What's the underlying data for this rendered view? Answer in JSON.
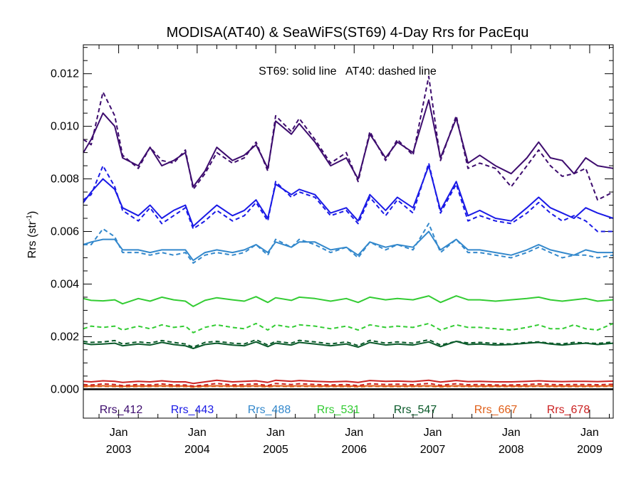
{
  "chart_data": {
    "type": "line",
    "title": "MODISA(AT40) & SeaWiFS(ST69) 4-Day Rrs for PacEqu",
    "annotation": "ST69: solid line   AT40: dashed line",
    "ylabel_main": "Rrs (str",
    "ylabel_sup": "-1",
    "ylabel_end": ")",
    "xlim": [
      2002.55,
      2009.3
    ],
    "ylim": [
      -0.0011,
      0.0131
    ],
    "y_ticks": [
      "0.000",
      "0.002",
      "0.004",
      "0.006",
      "0.008",
      "0.010",
      "0.012"
    ],
    "x_ticks": [
      {
        "month": "Jan",
        "year": "2003"
      },
      {
        "month": "Jan",
        "year": "2004"
      },
      {
        "month": "Jan",
        "year": "2005"
      },
      {
        "month": "Jan",
        "year": "2006"
      },
      {
        "month": "Jan",
        "year": "2007"
      },
      {
        "month": "Jan",
        "year": "2008"
      },
      {
        "month": "Jan",
        "year": "2009"
      }
    ],
    "zero_line": 0,
    "series": [
      {
        "name": "Rrs_412",
        "color": "#3d0c6e",
        "x": [
          2002.55,
          2002.65,
          2002.8,
          2002.95,
          2003.05,
          2003.25,
          2003.4,
          2003.55,
          2003.7,
          2003.85,
          2003.95,
          2004.1,
          2004.25,
          2004.45,
          2004.6,
          2004.75,
          2004.9,
          2005.0,
          2005.2,
          2005.3,
          2005.5,
          2005.7,
          2005.9,
          2006.05,
          2006.2,
          2006.4,
          2006.55,
          2006.75,
          2006.95,
          2007.1,
          2007.3,
          2007.45,
          2007.6,
          2007.8,
          2008.0,
          2008.2,
          2008.35,
          2008.5,
          2008.65,
          2008.8,
          2008.95,
          2009.1,
          2009.3
        ],
        "solid": [
          0.009,
          0.0095,
          0.0105,
          0.01,
          0.0088,
          0.0085,
          0.0092,
          0.0085,
          0.0087,
          0.009,
          0.0077,
          0.0083,
          0.0092,
          0.0087,
          0.0089,
          0.0093,
          0.0084,
          0.0102,
          0.0097,
          0.0101,
          0.0094,
          0.0085,
          0.0088,
          0.008,
          0.0097,
          0.0088,
          0.0094,
          0.009,
          0.011,
          0.0088,
          0.0103,
          0.0086,
          0.0089,
          0.0085,
          0.0082,
          0.0088,
          0.0094,
          0.0088,
          0.0087,
          0.0082,
          0.0088,
          0.0085,
          0.0084
        ],
        "dashed": [
          0.0095,
          0.0093,
          0.0113,
          0.0104,
          0.0089,
          0.0084,
          0.0092,
          0.0087,
          0.0086,
          0.0091,
          0.0076,
          0.0082,
          0.009,
          0.0086,
          0.0088,
          0.0094,
          0.0083,
          0.0104,
          0.0098,
          0.0103,
          0.0095,
          0.0086,
          0.009,
          0.0079,
          0.0098,
          0.0087,
          0.0095,
          0.0089,
          0.0119,
          0.0087,
          0.0104,
          0.0084,
          0.0086,
          0.0084,
          0.0077,
          0.0085,
          0.0091,
          0.0085,
          0.0081,
          0.0082,
          0.0084,
          0.0072,
          0.0075
        ]
      },
      {
        "name": "Rrs_443",
        "color": "#1a1ae6",
        "x": [
          2002.55,
          2002.65,
          2002.8,
          2002.95,
          2003.05,
          2003.25,
          2003.4,
          2003.55,
          2003.7,
          2003.85,
          2003.95,
          2004.1,
          2004.25,
          2004.45,
          2004.6,
          2004.75,
          2004.9,
          2005.0,
          2005.2,
          2005.3,
          2005.5,
          2005.7,
          2005.9,
          2006.05,
          2006.2,
          2006.4,
          2006.55,
          2006.75,
          2006.95,
          2007.1,
          2007.3,
          2007.45,
          2007.6,
          2007.8,
          2008.0,
          2008.2,
          2008.35,
          2008.5,
          2008.65,
          2008.8,
          2008.95,
          2009.1,
          2009.3
        ],
        "solid": [
          0.0071,
          0.0075,
          0.008,
          0.0076,
          0.0069,
          0.0066,
          0.007,
          0.0065,
          0.0068,
          0.007,
          0.0062,
          0.0066,
          0.007,
          0.0066,
          0.0068,
          0.0072,
          0.0065,
          0.0078,
          0.0074,
          0.0076,
          0.0074,
          0.0067,
          0.0069,
          0.0064,
          0.0074,
          0.0068,
          0.0073,
          0.0069,
          0.0085,
          0.0068,
          0.0079,
          0.0066,
          0.0068,
          0.0065,
          0.0064,
          0.0069,
          0.0073,
          0.0069,
          0.0067,
          0.0065,
          0.0069,
          0.0067,
          0.0065
        ],
        "dashed": [
          0.0072,
          0.0074,
          0.0085,
          0.0077,
          0.0068,
          0.0064,
          0.0069,
          0.0063,
          0.0066,
          0.0069,
          0.0061,
          0.0064,
          0.0068,
          0.0064,
          0.0066,
          0.0071,
          0.0064,
          0.0079,
          0.0073,
          0.0075,
          0.0073,
          0.0066,
          0.0068,
          0.0063,
          0.0073,
          0.0066,
          0.0072,
          0.0067,
          0.0086,
          0.0067,
          0.0078,
          0.0064,
          0.0066,
          0.0064,
          0.0063,
          0.0067,
          0.0071,
          0.0067,
          0.0064,
          0.0066,
          0.0064,
          0.006,
          0.006
        ]
      },
      {
        "name": "Rrs_488",
        "color": "#3388cc",
        "x": [
          2002.55,
          2002.65,
          2002.8,
          2002.95,
          2003.05,
          2003.25,
          2003.4,
          2003.55,
          2003.7,
          2003.85,
          2003.95,
          2004.1,
          2004.25,
          2004.45,
          2004.6,
          2004.75,
          2004.9,
          2005.0,
          2005.2,
          2005.3,
          2005.5,
          2005.7,
          2005.9,
          2006.05,
          2006.2,
          2006.4,
          2006.55,
          2006.75,
          2006.95,
          2007.1,
          2007.3,
          2007.45,
          2007.6,
          2007.8,
          2008.0,
          2008.2,
          2008.35,
          2008.5,
          2008.65,
          2008.8,
          2008.95,
          2009.1,
          2009.3
        ],
        "solid": [
          0.0055,
          0.0056,
          0.0057,
          0.0057,
          0.0053,
          0.0053,
          0.0052,
          0.0053,
          0.0053,
          0.0053,
          0.0049,
          0.0052,
          0.0053,
          0.0052,
          0.0053,
          0.0055,
          0.0052,
          0.0056,
          0.0054,
          0.0056,
          0.0056,
          0.0053,
          0.0054,
          0.0051,
          0.0056,
          0.0054,
          0.0055,
          0.0054,
          0.006,
          0.0053,
          0.0057,
          0.0053,
          0.0053,
          0.0052,
          0.0051,
          0.0053,
          0.0055,
          0.0053,
          0.0052,
          0.0051,
          0.0053,
          0.0052,
          0.0052
        ],
        "dashed": [
          0.0055,
          0.0055,
          0.0061,
          0.0058,
          0.0052,
          0.0052,
          0.0051,
          0.0052,
          0.0051,
          0.0052,
          0.0048,
          0.0051,
          0.0052,
          0.0051,
          0.0052,
          0.0055,
          0.0051,
          0.0057,
          0.0054,
          0.0057,
          0.0055,
          0.0052,
          0.0054,
          0.005,
          0.0056,
          0.0053,
          0.0055,
          0.0053,
          0.0063,
          0.0052,
          0.0057,
          0.0052,
          0.0052,
          0.0051,
          0.005,
          0.0052,
          0.0054,
          0.0052,
          0.005,
          0.0051,
          0.0051,
          0.005,
          0.0051
        ]
      },
      {
        "name": "Rrs_531",
        "color": "#33cc33",
        "x": [
          2002.55,
          2002.65,
          2002.8,
          2002.95,
          2003.05,
          2003.25,
          2003.4,
          2003.55,
          2003.7,
          2003.85,
          2003.95,
          2004.1,
          2004.25,
          2004.45,
          2004.6,
          2004.75,
          2004.9,
          2005.0,
          2005.2,
          2005.3,
          2005.5,
          2005.7,
          2005.9,
          2006.05,
          2006.2,
          2006.4,
          2006.55,
          2006.75,
          2006.95,
          2007.1,
          2007.3,
          2007.45,
          2007.6,
          2007.8,
          2008.0,
          2008.2,
          2008.35,
          2008.5,
          2008.65,
          2008.8,
          2008.95,
          2009.1,
          2009.3
        ],
        "solid": [
          0.00345,
          0.00338,
          0.00336,
          0.0034,
          0.00325,
          0.00345,
          0.00335,
          0.0035,
          0.0034,
          0.00335,
          0.00315,
          0.00338,
          0.00348,
          0.0034,
          0.00335,
          0.00352,
          0.0033,
          0.00348,
          0.00338,
          0.0035,
          0.00345,
          0.00335,
          0.00345,
          0.0033,
          0.0035,
          0.0034,
          0.00345,
          0.0034,
          0.00355,
          0.0033,
          0.00355,
          0.0034,
          0.0034,
          0.00335,
          0.0034,
          0.00345,
          0.0035,
          0.0034,
          0.00335,
          0.0034,
          0.00345,
          0.00335,
          0.0034
        ],
        "dashed": [
          0.0023,
          0.0024,
          0.00235,
          0.0024,
          0.00225,
          0.0024,
          0.0023,
          0.00245,
          0.00235,
          0.0024,
          0.00215,
          0.00235,
          0.00245,
          0.00235,
          0.0023,
          0.0025,
          0.00225,
          0.00245,
          0.00235,
          0.00245,
          0.0024,
          0.0023,
          0.0024,
          0.00225,
          0.00245,
          0.00235,
          0.0024,
          0.00235,
          0.0025,
          0.00225,
          0.00245,
          0.00235,
          0.00235,
          0.0023,
          0.00225,
          0.00235,
          0.00245,
          0.0023,
          0.0023,
          0.00245,
          0.0023,
          0.00225,
          0.0025
        ]
      },
      {
        "name": "Rrs_547",
        "color": "#0a5a2a",
        "x": [
          2002.55,
          2002.65,
          2002.8,
          2002.95,
          2003.05,
          2003.25,
          2003.4,
          2003.55,
          2003.7,
          2003.85,
          2003.95,
          2004.1,
          2004.25,
          2004.45,
          2004.6,
          2004.75,
          2004.9,
          2005.0,
          2005.2,
          2005.3,
          2005.5,
          2005.7,
          2005.9,
          2006.05,
          2006.2,
          2006.4,
          2006.55,
          2006.75,
          2006.95,
          2007.1,
          2007.3,
          2007.45,
          2007.6,
          2007.8,
          2008.0,
          2008.2,
          2008.35,
          2008.5,
          2008.65,
          2008.8,
          2008.95,
          2009.1,
          2009.3
        ],
        "solid": [
          0.00175,
          0.0017,
          0.00172,
          0.00175,
          0.00165,
          0.00172,
          0.00168,
          0.00178,
          0.0017,
          0.00165,
          0.00155,
          0.0017,
          0.00175,
          0.00168,
          0.00165,
          0.0018,
          0.00162,
          0.00175,
          0.00168,
          0.00178,
          0.00172,
          0.00165,
          0.00172,
          0.0016,
          0.00178,
          0.00168,
          0.00172,
          0.00168,
          0.0018,
          0.00162,
          0.00182,
          0.0017,
          0.00172,
          0.00168,
          0.0017,
          0.00175,
          0.00178,
          0.00172,
          0.00168,
          0.00172,
          0.00175,
          0.0017,
          0.00175
        ],
        "dashed": [
          0.00182,
          0.00178,
          0.0018,
          0.00185,
          0.00172,
          0.0018,
          0.00176,
          0.00185,
          0.00178,
          0.00172,
          0.0016,
          0.00178,
          0.00182,
          0.00175,
          0.00172,
          0.00188,
          0.00168,
          0.00182,
          0.00175,
          0.00186,
          0.0018,
          0.00172,
          0.0018,
          0.00166,
          0.00186,
          0.00175,
          0.0018,
          0.00175,
          0.00188,
          0.00168,
          0.00182,
          0.00176,
          0.00178,
          0.00174,
          0.00172,
          0.00178,
          0.0018,
          0.00175,
          0.00172,
          0.00178,
          0.00176,
          0.00174,
          0.0018
        ]
      },
      {
        "name": "Rrs_667",
        "color": "#e0601a",
        "x": [
          2002.55,
          2002.65,
          2002.8,
          2002.95,
          2003.05,
          2003.25,
          2003.4,
          2003.55,
          2003.7,
          2003.85,
          2003.95,
          2004.1,
          2004.25,
          2004.45,
          2004.6,
          2004.75,
          2004.9,
          2005.0,
          2005.2,
          2005.3,
          2005.5,
          2005.7,
          2005.9,
          2006.05,
          2006.2,
          2006.4,
          2006.55,
          2006.75,
          2006.95,
          2007.1,
          2007.3,
          2007.45,
          2007.6,
          2007.8,
          2008.0,
          2008.2,
          2008.35,
          2008.5,
          2008.65,
          2008.8,
          2008.95,
          2009.1,
          2009.3
        ],
        "solid": [
          0.00012,
          0.00012,
          0.00013,
          0.00012,
          0.00011,
          0.00012,
          0.00012,
          0.00013,
          0.00012,
          0.00012,
          0.0001,
          0.00012,
          0.00013,
          0.00012,
          0.00012,
          0.00013,
          0.00011,
          0.00013,
          0.00012,
          0.00013,
          0.00012,
          0.00012,
          0.00012,
          0.00011,
          0.00013,
          0.00012,
          0.00012,
          0.00012,
          0.00013,
          0.00011,
          0.00013,
          0.00012,
          0.00012,
          0.00012,
          0.00012,
          0.00012,
          0.00013,
          0.00012,
          0.00012,
          0.00012,
          0.00012,
          0.00012,
          0.00013
        ],
        "dashed": [
          0.0001,
          0.0001,
          0.00011,
          0.0001,
          9e-05,
          0.0001,
          0.0001,
          0.00011,
          0.0001,
          0.0001,
          8e-05,
          0.0001,
          0.00011,
          0.0001,
          0.0001,
          0.00011,
          9e-05,
          0.00011,
          0.0001,
          0.00011,
          0.0001,
          0.0001,
          0.0001,
          9e-05,
          0.00011,
          0.0001,
          0.0001,
          0.0001,
          0.00011,
          9e-05,
          0.00011,
          0.0001,
          0.0001,
          0.0001,
          0.0001,
          0.0001,
          0.00011,
          0.0001,
          0.0001,
          0.0001,
          0.0001,
          0.0001,
          0.00011
        ]
      },
      {
        "name": "Rrs_678",
        "color": "#cc2222",
        "x": [
          2002.55,
          2002.65,
          2002.8,
          2002.95,
          2003.05,
          2003.25,
          2003.4,
          2003.55,
          2003.7,
          2003.85,
          2003.95,
          2004.1,
          2004.25,
          2004.45,
          2004.6,
          2004.75,
          2004.9,
          2005.0,
          2005.2,
          2005.3,
          2005.5,
          2005.7,
          2005.9,
          2006.05,
          2006.2,
          2006.4,
          2006.55,
          2006.75,
          2006.95,
          2007.1,
          2007.3,
          2007.45,
          2007.6,
          2007.8,
          2008.0,
          2008.2,
          2008.35,
          2008.5,
          2008.65,
          2008.8,
          2008.95,
          2009.1,
          2009.3
        ],
        "solid": [
          0.0003,
          0.00028,
          0.00032,
          0.0003,
          0.00026,
          0.0003,
          0.00028,
          0.00032,
          0.00028,
          0.00028,
          0.00022,
          0.00028,
          0.00034,
          0.00028,
          0.0003,
          0.00032,
          0.00026,
          0.00034,
          0.0003,
          0.00033,
          0.0003,
          0.00028,
          0.0003,
          0.00026,
          0.00033,
          0.0003,
          0.00031,
          0.00029,
          0.00034,
          0.00027,
          0.00033,
          0.00029,
          0.0003,
          0.00028,
          0.00028,
          0.0003,
          0.00032,
          0.0003,
          0.00029,
          0.0003,
          0.0003,
          0.00029,
          0.00031
        ],
        "dashed": [
          0.00018,
          0.00016,
          0.0002,
          0.00018,
          0.00014,
          0.00018,
          0.00016,
          0.0002,
          0.00016,
          0.00016,
          0.00012,
          0.00016,
          0.00022,
          0.00016,
          0.00018,
          0.0002,
          0.00014,
          0.00022,
          0.00018,
          0.00021,
          0.00018,
          0.00016,
          0.00018,
          0.00014,
          0.00021,
          0.00018,
          0.00019,
          0.00017,
          0.00022,
          0.00015,
          0.00021,
          0.00017,
          0.00018,
          0.00016,
          0.00016,
          0.00018,
          0.0002,
          0.00018,
          0.00017,
          0.00018,
          0.00018,
          0.00017,
          0.00019
        ]
      }
    ]
  }
}
